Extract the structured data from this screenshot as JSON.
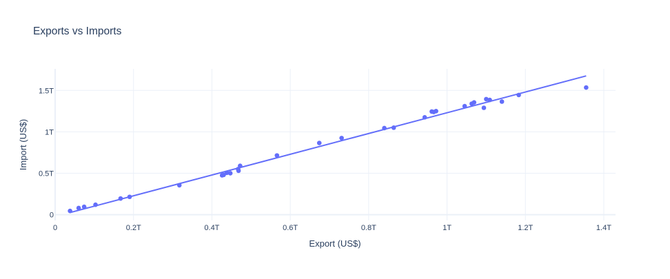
{
  "chart_data": {
    "type": "scatter",
    "title": "Exports vs Imports",
    "xlabel": "Export (US$)",
    "ylabel": "Import (US$)",
    "xlim": [
      0,
      1.43
    ],
    "ylim": [
      -0.07,
      1.76
    ],
    "x_ticks": [
      {
        "value": 0,
        "label": "0"
      },
      {
        "value": 0.2,
        "label": "0.2T"
      },
      {
        "value": 0.4,
        "label": "0.4T"
      },
      {
        "value": 0.6,
        "label": "0.6T"
      },
      {
        "value": 0.8,
        "label": "0.8T"
      },
      {
        "value": 1.0,
        "label": "1T"
      },
      {
        "value": 1.2,
        "label": "1.2T"
      },
      {
        "value": 1.4,
        "label": "1.4T"
      }
    ],
    "y_ticks": [
      {
        "value": 0,
        "label": "0"
      },
      {
        "value": 0.5,
        "label": "0.5T"
      },
      {
        "value": 1.0,
        "label": "1T"
      },
      {
        "value": 1.5,
        "label": "1.5T"
      }
    ],
    "grid": true,
    "colors": {
      "series": "#636efa",
      "grid": "#ebf0f8",
      "zeroline": "#ebf0f8",
      "text": "#2a3f5f"
    },
    "series": [
      {
        "type": "scatter",
        "x": [
          0.038,
          0.06,
          0.074,
          0.103,
          0.167,
          0.19,
          0.317,
          0.426,
          0.43,
          0.438,
          0.447,
          0.467,
          0.468,
          0.472,
          0.566,
          0.674,
          0.731,
          0.84,
          0.864,
          0.943,
          0.961,
          0.966,
          0.972,
          1.045,
          1.063,
          1.069,
          1.094,
          1.1,
          1.109,
          1.14,
          1.183,
          1.355
        ],
        "y": [
          0.045,
          0.08,
          0.095,
          0.12,
          0.195,
          0.215,
          0.355,
          0.475,
          0.48,
          0.505,
          0.5,
          0.55,
          0.53,
          0.59,
          0.715,
          0.865,
          0.925,
          1.045,
          1.05,
          1.175,
          1.245,
          1.24,
          1.25,
          1.31,
          1.34,
          1.355,
          1.29,
          1.395,
          1.385,
          1.365,
          1.445,
          1.535
        ]
      },
      {
        "type": "line",
        "x": [
          0.038,
          1.355
        ],
        "y": [
          0.025,
          1.675
        ]
      }
    ]
  }
}
